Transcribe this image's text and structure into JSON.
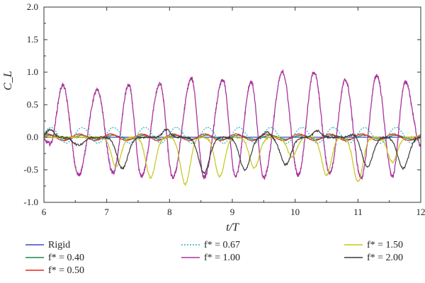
{
  "chart_data": {
    "type": "line",
    "xlabel": "t/T",
    "ylabel": "C_L",
    "xlim": [
      6,
      12
    ],
    "ylim": [
      -1.0,
      2.0
    ],
    "x_ticks": [
      "6",
      "7",
      "8",
      "9",
      "10",
      "11",
      "12"
    ],
    "y_ticks": [
      "2.0",
      "1.5",
      "1.0",
      "0.5",
      "0.0",
      "-0.5",
      "-1.0"
    ],
    "grid": false,
    "legend_position": "bottom",
    "series": [
      {
        "name": "Rigid",
        "color": "#3b4cc0",
        "dash": "solid",
        "type": "flat",
        "amplitude": 0.0,
        "offset": 0.0,
        "freq": 1,
        "phase": 0
      },
      {
        "name": "f* = 0.40",
        "color": "#1a8a4a",
        "dash": "solid",
        "type": "sine",
        "amplitude": 0.03,
        "offset": 0.0,
        "freq": 2,
        "phase": 0.3
      },
      {
        "name": "f* = 0.50",
        "color": "#e8231b",
        "dash": "solid",
        "type": "sine",
        "amplitude": 0.05,
        "offset": 0.0,
        "freq": 2,
        "phase": 0.8
      },
      {
        "name": "f* = 0.67",
        "color": "#23b4c8",
        "dash": "dotted",
        "type": "sine",
        "amplitude": 0.12,
        "offset": 0.06,
        "freq": 2,
        "phase": 0.2
      },
      {
        "name": "f* = 1.00",
        "color": "#a8339c",
        "dash": "solid",
        "type": "peaks",
        "peaks_x": [
          6.3,
          6.85,
          7.35,
          7.85,
          8.35,
          8.85,
          9.3,
          9.8,
          10.3,
          10.8,
          11.3,
          11.75
        ],
        "peaks_y": [
          0.8,
          0.72,
          0.8,
          0.82,
          0.9,
          0.88,
          0.85,
          1.0,
          1.0,
          0.88,
          0.95,
          0.85
        ],
        "troughs_x": [
          6.1,
          6.55,
          7.1,
          7.55,
          8.05,
          8.55,
          9.05,
          9.5,
          10.05,
          10.55,
          11.05,
          11.55,
          12.0
        ],
        "troughs_y": [
          -0.1,
          -0.58,
          -0.55,
          -0.6,
          -0.62,
          -0.62,
          -0.6,
          -0.62,
          -0.58,
          -0.55,
          -0.62,
          -0.6,
          -0.12
        ]
      },
      {
        "name": "f* = 1.50",
        "color": "#c5c51c",
        "dash": "solid",
        "type": "dips",
        "dips_x": [
          7.15,
          7.7,
          8.25,
          8.8,
          9.35,
          9.95,
          10.5,
          11.0,
          11.55
        ],
        "dips_y": [
          -0.45,
          -0.62,
          -0.72,
          -0.6,
          -0.48,
          -0.3,
          -0.58,
          -0.68,
          -0.38
        ],
        "width": 0.16
      },
      {
        "name": "f* = 2.00",
        "color": "#3a3a3a",
        "dash": "solid",
        "type": "dips",
        "dips_x": [
          6.55,
          7.25,
          8.55,
          9.2,
          9.85,
          11.15,
          11.72
        ],
        "dips_y": [
          -0.12,
          -0.48,
          -0.55,
          -0.5,
          -0.42,
          -0.45,
          -0.48
        ],
        "width": 0.18,
        "bumps_x": [
          6.1,
          7.95,
          9.55,
          10.35,
          10.95
        ],
        "bumps_y": [
          0.12,
          0.12,
          0.08,
          0.1,
          0.06
        ]
      }
    ],
    "legend": [
      {
        "label": "Rigid",
        "col": 0,
        "row": 0
      },
      {
        "label": "f* = 0.40",
        "col": 0,
        "row": 1
      },
      {
        "label": "f* = 0.50",
        "col": 0,
        "row": 2
      },
      {
        "label": "f* = 0.67",
        "col": 1,
        "row": 0
      },
      {
        "label": "f* = 1.00",
        "col": 1,
        "row": 1
      },
      {
        "label": "f* = 1.50",
        "col": 2,
        "row": 0
      },
      {
        "label": "f* = 2.00",
        "col": 2,
        "row": 1
      }
    ]
  }
}
